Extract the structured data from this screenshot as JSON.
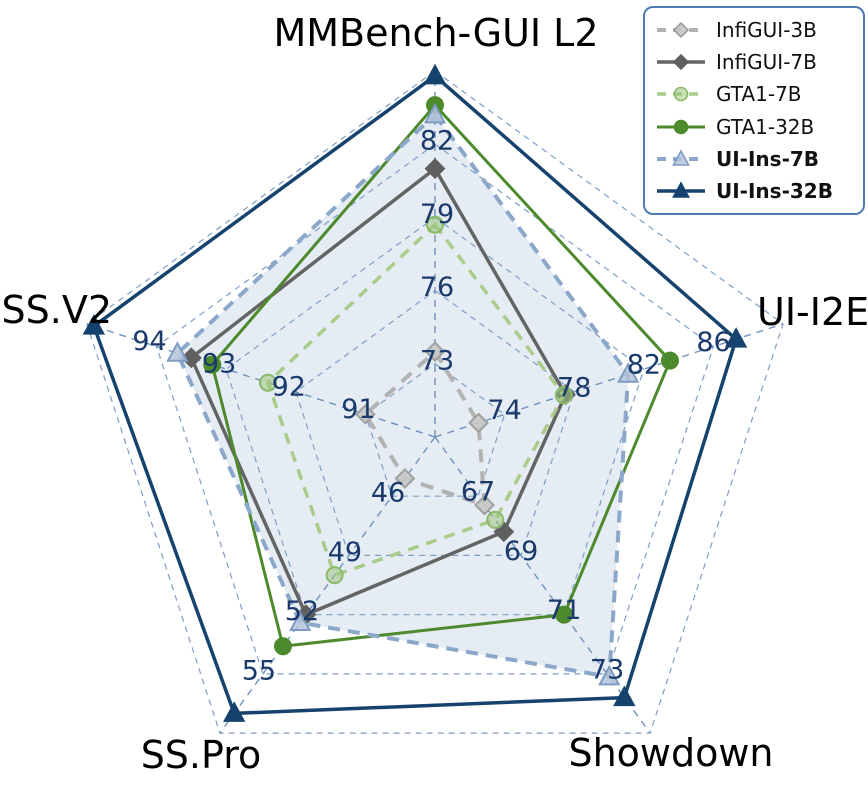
{
  "figure": {
    "background": "#ffffff",
    "tick_label_color": "#1a3a6b",
    "axis_title_color": "#000000",
    "grid_color": "#7e9ec6",
    "spoke_color": "#6e92bf",
    "legend_border_color": "#4d7bb0"
  },
  "chart_data": {
    "type": "radar",
    "title": "",
    "grid": {
      "shape": "pentagon",
      "rings": 5,
      "style": "dashed",
      "grid_on": true
    },
    "legend_position": "top-right",
    "axes": [
      {
        "label": "MMBench-GUI L2",
        "ticks": [
          73,
          76,
          79,
          82
        ],
        "min": 70,
        "max": 85
      },
      {
        "label": "UI-I2E",
        "ticks": [
          74,
          78,
          82,
          86
        ],
        "min": 70,
        "max": 90
      },
      {
        "label": "Showdown",
        "ticks": [
          67,
          69,
          71,
          73
        ],
        "min": 65,
        "max": 75
      },
      {
        "label": "SS.Pro",
        "ticks": [
          46,
          49,
          52,
          55
        ],
        "min": 43,
        "max": 58
      },
      {
        "label": "SS.V2",
        "ticks": [
          91,
          92,
          93,
          94
        ],
        "min": 90,
        "max": 95
      }
    ],
    "series": [
      {
        "name": "InfiGUI-3B",
        "values": [
          73.5,
          72.5,
          67.3,
          45.1,
          91.0
        ],
        "color": "#b2b2b2",
        "line_style": "dashed",
        "dash": "13,9",
        "line_width": 4,
        "marker": "diamond",
        "marker_fill": "#c6c6c6",
        "marker_fill_opacity": 0.9,
        "marker_edge": "#a0a0a0",
        "bold_in_legend": false
      },
      {
        "name": "InfiGUI-7B",
        "values": [
          81.0,
          77.5,
          68.2,
          52.0,
          93.5
        ],
        "color": "#646464",
        "line_style": "solid",
        "dash": null,
        "line_width": 3.5,
        "marker": "diamond",
        "marker_fill": "#5f5f5f",
        "marker_fill_opacity": 1,
        "marker_edge": "#5f5f5f",
        "bold_in_legend": false
      },
      {
        "name": "GTA1-7B",
        "values": [
          78.7,
          77.4,
          67.8,
          50.0,
          92.4
        ],
        "color": "#a9cc8a",
        "line_style": "dashed",
        "dash": "11,8",
        "line_width": 3.5,
        "marker": "circle",
        "marker_fill": "#9cc47c",
        "marker_fill_opacity": 0.55,
        "marker_edge": "#8ab968",
        "bold_in_legend": false
      },
      {
        "name": "GTA1-32B",
        "values": [
          83.6,
          83.5,
          71.0,
          53.6,
          93.2
        ],
        "color": "#4c8a2d",
        "line_style": "solid",
        "dash": null,
        "line_width": 3,
        "marker": "circle",
        "marker_fill": "#4c8a2d",
        "marker_fill_opacity": 1,
        "marker_edge": "#4c8a2d",
        "bold_in_legend": false
      },
      {
        "name": "UI-Ins-7B",
        "values": [
          83.2,
          81.1,
          73.1,
          52.4,
          93.7
        ],
        "color": "#8ba8ca",
        "line_style": "dashed",
        "dash": "12,8",
        "line_width": 4,
        "marker": "triangle",
        "marker_fill": "#b3c4da",
        "marker_fill_opacity": 0.85,
        "marker_edge": "#7e9cc2",
        "fill": "#8ba8ca",
        "fill_opacity": 0.22,
        "bold_in_legend": true
      },
      {
        "name": "UI-Ins-32B",
        "values": [
          84.8,
          87.3,
          73.8,
          57.0,
          94.9
        ],
        "color": "#16436e",
        "line_style": "solid",
        "dash": null,
        "line_width": 3.5,
        "marker": "triangle",
        "marker_fill": "#16436e",
        "marker_fill_opacity": 1,
        "marker_edge": "#16436e",
        "bold_in_legend": true
      }
    ]
  }
}
